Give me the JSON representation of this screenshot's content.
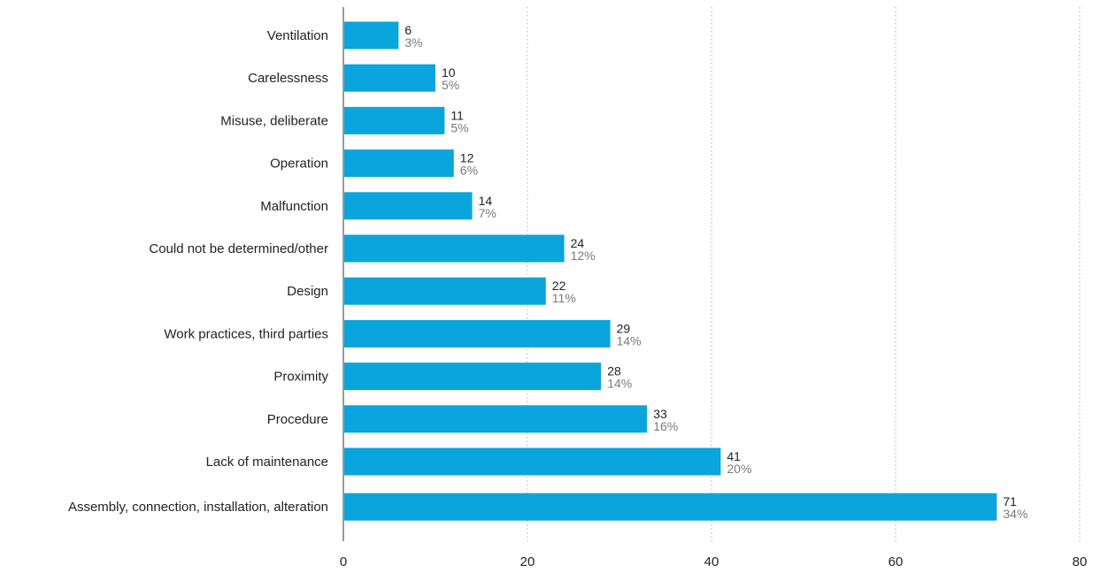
{
  "chart_data": {
    "type": "bar",
    "orientation": "horizontal",
    "categories": [
      "Ventilation",
      "Carelessness",
      "Misuse, deliberate",
      "Operation",
      "Malfunction",
      "Could not be determined/other",
      "Design",
      "Work practices, third parties",
      "Proximity",
      "Procedure",
      "Lack of maintenance",
      "Assembly, connection, installation, alteration"
    ],
    "values": [
      6,
      10,
      11,
      12,
      14,
      24,
      22,
      29,
      28,
      33,
      41,
      71
    ],
    "percent_labels": [
      "3%",
      "5%",
      "5%",
      "6%",
      "7%",
      "12%",
      "11%",
      "14%",
      "14%",
      "16%",
      "20%",
      "34%"
    ],
    "xlim": [
      0,
      80
    ],
    "xticks": [
      0,
      20,
      40,
      60,
      80
    ],
    "title": "",
    "xlabel": "",
    "ylabel": "",
    "grid": "vertical dotted",
    "colors": {
      "bar": "#0aa5dc",
      "axis": "#9a9a9a",
      "grid": "#aaaaaa",
      "text": "#222222",
      "percent": "#7a7a7a"
    }
  }
}
